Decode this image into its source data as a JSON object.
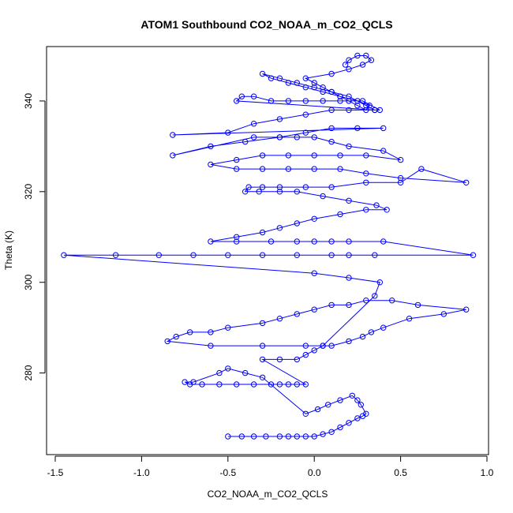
{
  "chart_data": {
    "type": "scatter",
    "title": "ATOM1 Southbound CO2_NOAA_m_CO2_QCLS",
    "xlabel": "CO2_NOAA_m_CO2_QCLS",
    "ylabel": "Theta (K)",
    "xlim": [
      -1.5,
      1.0
    ],
    "ylim": [
      262,
      352
    ],
    "x_ticks": [
      -1.5,
      -1.0,
      -0.5,
      0.0,
      0.5,
      1.0
    ],
    "x_tick_labels": [
      "-1.5",
      "-1.0",
      "-0.5",
      "0.0",
      "0.5",
      "1.0"
    ],
    "y_ticks": [
      280,
      300,
      320,
      340
    ],
    "y_tick_labels": [
      "280",
      "300",
      "320",
      "340"
    ],
    "series": [
      {
        "name": "CO2_NOAA_m_CO2_QCLS vs Theta",
        "color": "#0000ff",
        "marker": "open-circle",
        "line": true,
        "x": [
          -0.5,
          -0.42,
          -0.35,
          -0.28,
          -0.2,
          -0.15,
          -0.1,
          -0.05,
          0.0,
          0.05,
          0.1,
          0.15,
          0.2,
          0.25,
          0.28,
          0.3,
          0.27,
          0.25,
          0.22,
          0.15,
          0.08,
          0.02,
          -0.05,
          -0.3,
          -0.4,
          -0.5,
          -0.55,
          -0.7,
          -0.75,
          -0.72,
          -0.65,
          -0.55,
          -0.45,
          -0.35,
          -0.25,
          -0.2,
          -0.15,
          -0.1,
          -0.05,
          -0.3,
          -0.2,
          -0.1,
          -0.05,
          0.0,
          0.05,
          0.1,
          0.2,
          0.28,
          0.33,
          0.4,
          0.55,
          0.75,
          0.88,
          0.6,
          0.45,
          0.3,
          0.2,
          0.1,
          0.0,
          -0.1,
          -0.2,
          -0.3,
          -0.5,
          -0.6,
          -0.72,
          -0.8,
          -0.85,
          -0.6,
          -0.3,
          -0.05,
          0.05,
          0.35,
          0.38,
          0.2,
          0.0,
          -1.45,
          -1.15,
          -0.9,
          -0.7,
          -0.5,
          -0.3,
          -0.1,
          0.1,
          0.2,
          0.35,
          0.92,
          0.4,
          0.2,
          0.1,
          0.0,
          -0.1,
          -0.25,
          -0.45,
          -0.6,
          -0.45,
          -0.3,
          -0.2,
          -0.1,
          0.0,
          0.15,
          0.3,
          0.42,
          0.36,
          0.2,
          0.05,
          -0.1,
          -0.2,
          -0.32,
          -0.4,
          -0.38,
          -0.3,
          -0.2,
          -0.05,
          0.1,
          0.3,
          0.5,
          0.62,
          0.88,
          0.5,
          0.3,
          0.15,
          0.0,
          -0.15,
          -0.3,
          -0.45,
          -0.6,
          -0.45,
          -0.3,
          -0.15,
          0.0,
          0.15,
          0.3,
          0.5,
          0.4,
          0.2,
          0.1,
          0.0,
          -0.1,
          -0.2,
          -0.35,
          -0.82,
          -0.6,
          -0.4,
          -0.2,
          -0.05,
          0.1,
          0.25,
          0.4,
          -0.82,
          -0.5,
          -0.35,
          -0.2,
          -0.05,
          0.1,
          0.2,
          0.35,
          -0.45,
          -0.42,
          -0.35,
          -0.25,
          -0.15,
          -0.05,
          0.05,
          0.15,
          0.28,
          0.38,
          0.35,
          0.3,
          0.2,
          0.1,
          0.0,
          -0.1,
          -0.2,
          -0.3,
          -0.25,
          -0.15,
          -0.05,
          0.05,
          0.15,
          0.25,
          0.32,
          0.3,
          0.25,
          0.2,
          0.15,
          0.1,
          0.05,
          0.0,
          -0.05,
          0.1,
          0.2,
          0.28,
          0.33,
          0.3,
          0.25,
          0.2,
          0.18
        ],
        "y": [
          266,
          266,
          266,
          266,
          266,
          266,
          266,
          266,
          266,
          266.5,
          267,
          268,
          269,
          270,
          270.5,
          271,
          273,
          274,
          275,
          274,
          273,
          272,
          271,
          279,
          280,
          281,
          280,
          278,
          278,
          277.5,
          277.5,
          277.5,
          277.5,
          277.5,
          277.5,
          277.5,
          277.5,
          277.5,
          277.5,
          283,
          283,
          283,
          284,
          285,
          286,
          286,
          287,
          288,
          289,
          290,
          292,
          293,
          294,
          295,
          296,
          296,
          295,
          295,
          294,
          293,
          292,
          291,
          290,
          289,
          289,
          288,
          287,
          286,
          286,
          286,
          286,
          297,
          300,
          301,
          302,
          306,
          306,
          306,
          306,
          306,
          306,
          306,
          306,
          306,
          306,
          306,
          309,
          309,
          309,
          309,
          309,
          309,
          309,
          309,
          310,
          311,
          312,
          313,
          314,
          315,
          316,
          316,
          317,
          318,
          319,
          320,
          320,
          320,
          320,
          321,
          321,
          321,
          321,
          321,
          322,
          322,
          325,
          322,
          323,
          324,
          325,
          325,
          325,
          325,
          325,
          326,
          327,
          328,
          328,
          328,
          328,
          328,
          327,
          329,
          330,
          331,
          332,
          332,
          332,
          332,
          328,
          330,
          331,
          332,
          333,
          334,
          334,
          334,
          332.5,
          333,
          335,
          336,
          337,
          338,
          338,
          338,
          340,
          341,
          341,
          340,
          340,
          340,
          340,
          340,
          340,
          338,
          338,
          339,
          341,
          342,
          343,
          344,
          345,
          346,
          345,
          344,
          343,
          342,
          341,
          340,
          339,
          338,
          339,
          340,
          341,
          342,
          343,
          344,
          345,
          346,
          347,
          348,
          349,
          350,
          350,
          349,
          348
        ]
      }
    ]
  }
}
